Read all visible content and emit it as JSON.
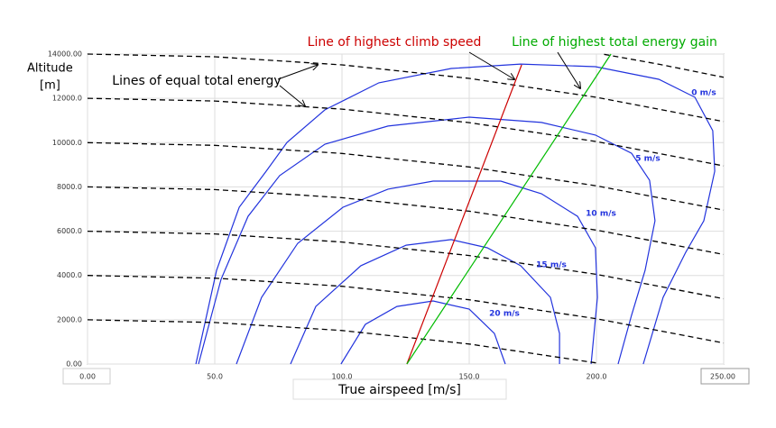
{
  "chart_data": {
    "type": "line",
    "x_label": "True airspeed [m/s]",
    "y_label": [
      "Altitude",
      "[m]"
    ],
    "xlim": [
      0,
      250
    ],
    "ylim": [
      0,
      14000
    ],
    "xticks": [
      {
        "value": 0,
        "label": "0.00"
      },
      {
        "value": 50,
        "label": "50.0"
      },
      {
        "value": 100,
        "label": "100.0"
      },
      {
        "value": 150,
        "label": "150.0"
      },
      {
        "value": 200,
        "label": "200.0"
      },
      {
        "value": 250,
        "label": "250.00"
      }
    ],
    "yticks": [
      {
        "value": 0,
        "label": "0.00"
      },
      {
        "value": 2000,
        "label": "2000.0"
      },
      {
        "value": 4000,
        "label": "4000.0"
      },
      {
        "value": 6000,
        "label": "6000.0"
      },
      {
        "value": 8000,
        "label": "8000.0"
      },
      {
        "value": 10000,
        "label": "10000.0"
      },
      {
        "value": 12000,
        "label": "12000.0"
      },
      {
        "value": 14000,
        "label": "14000.00"
      }
    ],
    "grid": true,
    "annotations": [
      {
        "text": "Line of highest climb speed",
        "color": "#cc0000"
      },
      {
        "text": "Line of highest total energy gain",
        "color": "#00aa00"
      },
      {
        "text": "Lines of equal total energy",
        "color": "#000000"
      }
    ],
    "series": [
      {
        "name": "0 m/s",
        "color": "#2233dd",
        "dashed": false,
        "x": [
          42.6,
          50.7,
          59.6,
          70.2,
          78.4,
          93.3,
          114.5,
          142.9,
          170.2,
          199.6,
          224.5,
          238.7,
          245.7,
          246.5,
          242.2,
          235.1,
          226.2,
          218.4
        ],
        "values": [
          0,
          4230,
          7080,
          8710,
          10010,
          11480,
          12700,
          13350,
          13550,
          13430,
          12860,
          12050,
          10540,
          8710,
          6470,
          5050,
          3010,
          0
        ]
      },
      {
        "name": "5 m/s",
        "color": "#2233dd",
        "dashed": false,
        "x": [
          43.6,
          52.5,
          63.1,
          75.5,
          93.3,
          118.1,
          150,
          178.4,
          199.6,
          213.8,
          220.9,
          223,
          219.1,
          213.8,
          208.5
        ],
        "values": [
          0,
          3830,
          6670,
          8510,
          9930,
          10750,
          11150,
          10910,
          10340,
          9520,
          8300,
          6470,
          4230,
          2200,
          0
        ]
      },
      {
        "name": "10 m/s",
        "color": "#2233dd",
        "dashed": false,
        "x": [
          58.5,
          68.4,
          82.6,
          100.4,
          118.1,
          135.8,
          162.4,
          178.4,
          192.6,
          199.6,
          200.4,
          197.9
        ],
        "values": [
          0,
          3010,
          5450,
          7080,
          7900,
          8260,
          8260,
          7690,
          6670,
          5250,
          3010,
          0
        ]
      },
      {
        "name": "15 m/s",
        "color": "#2233dd",
        "dashed": false,
        "x": [
          79.8,
          89.7,
          107.4,
          125.2,
          142.9,
          157.1,
          170.2,
          181.9,
          185.5,
          185.5
        ],
        "values": [
          0,
          2600,
          4440,
          5370,
          5620,
          5250,
          4440,
          3010,
          1380,
          0
        ]
      },
      {
        "name": "20 m/s",
        "color": "#2233dd",
        "dashed": false,
        "x": [
          99.6,
          109.2,
          121.6,
          135.8,
          150,
          159.9,
          164.2
        ],
        "values": [
          0,
          1790,
          2600,
          2850,
          2480,
          1380,
          0
        ]
      },
      {
        "color": "#000000",
        "dashed": true,
        "x": [
          203,
          225,
          250
        ],
        "values": [
          13989,
          13530,
          12950
        ]
      },
      {
        "color": "#000000",
        "dashed": true,
        "x": [
          0,
          50,
          100,
          150,
          200,
          250
        ],
        "values": [
          14000,
          13878,
          13512,
          12902,
          12048,
          10950
        ]
      },
      {
        "color": "#000000",
        "dashed": true,
        "x": [
          0,
          50,
          100,
          150,
          200,
          250
        ],
        "values": [
          12000,
          11878,
          11512,
          10902,
          10048,
          8950
        ]
      },
      {
        "color": "#000000",
        "dashed": true,
        "x": [
          0,
          50,
          100,
          150,
          200,
          250
        ],
        "values": [
          10000,
          9878,
          9512,
          8902,
          8048,
          6950
        ]
      },
      {
        "color": "#000000",
        "dashed": true,
        "x": [
          0,
          50,
          100,
          150,
          200,
          250
        ],
        "values": [
          8000,
          7878,
          7512,
          6902,
          6048,
          4950
        ]
      },
      {
        "color": "#000000",
        "dashed": true,
        "x": [
          0,
          50,
          100,
          150,
          200,
          250
        ],
        "values": [
          6000,
          5878,
          5512,
          4902,
          4048,
          2950
        ]
      },
      {
        "color": "#000000",
        "dashed": true,
        "x": [
          0,
          50,
          100,
          150,
          200,
          250
        ],
        "values": [
          4000,
          3878,
          3512,
          2902,
          2048,
          950
        ]
      },
      {
        "color": "#000000",
        "dashed": true,
        "x": [
          0,
          50,
          100,
          150,
          200
        ],
        "values": [
          2000,
          1878,
          1512,
          902,
          48
        ]
      },
      {
        "color": "#cc0000",
        "dashed": false,
        "x": [
          125.5,
          170.6
        ],
        "values": [
          0,
          13510
        ]
      },
      {
        "color": "#00bb00",
        "dashed": false,
        "x": [
          125.5,
          205.7
        ],
        "values": [
          0,
          14000
        ]
      }
    ]
  }
}
